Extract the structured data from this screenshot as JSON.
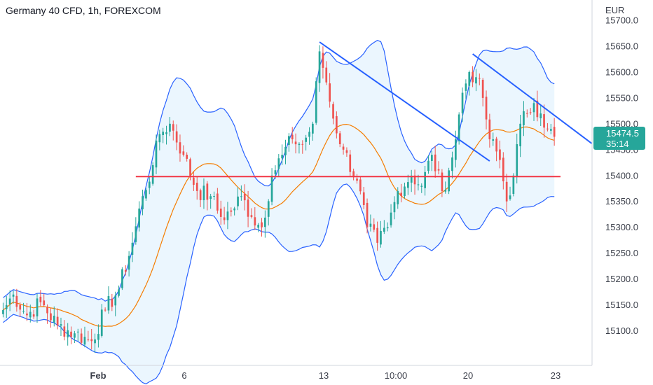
{
  "header": {
    "title": "Germany 40 CFD, 1h, FOREXCOM"
  },
  "price_axis": {
    "currency": "EUR"
  },
  "last_price": {
    "value": "15474.5",
    "countdown": "35:14"
  },
  "colors": {
    "up": "#26a69a",
    "down": "#ef5350",
    "basis": "#f57c00",
    "band": "#2962ff",
    "band_fill": "#2196f3",
    "trendline": "#2962ff",
    "support": "#f23645",
    "badge": "#26a69a"
  },
  "chart_data": {
    "type": "candlestick",
    "title": "Germany 40 CFD, 1h, FOREXCOM",
    "y_axis": {
      "position": "right",
      "ylim": [
        15050,
        15710
      ],
      "ticks": [
        15100,
        15150,
        15200,
        15250,
        15300,
        15350,
        15400,
        15450,
        15500,
        15550,
        15600,
        15650,
        15700
      ],
      "tick_labels": [
        "15100.0",
        "15150.0",
        "15200.0",
        "15250.0",
        "15300.0",
        "15350.0",
        "15400.0",
        "15450.0",
        "15500.0",
        "15550.0",
        "15600.0",
        "15650.0",
        "15700.0"
      ]
    },
    "x_axis": {
      "ticks": [
        "Feb",
        "6",
        "13",
        "10:00",
        "20",
        "23"
      ]
    },
    "grid": false,
    "indicator": "Bollinger Bands",
    "support_level": 15398,
    "trendlines": [
      {
        "from": {
          "bar": 93,
          "price": 15658
        },
        "to": {
          "bar": 143,
          "price": 15428
        }
      },
      {
        "from": {
          "bar": 138,
          "price": 15635
        },
        "to": {
          "bar": 173,
          "price": 15462
        }
      }
    ],
    "last_price": 15474.5,
    "anchors": [
      [
        0,
        15140
      ],
      [
        3,
        15170
      ],
      [
        7,
        15130
      ],
      [
        11,
        15155
      ],
      [
        16,
        15110
      ],
      [
        21,
        15095
      ],
      [
        26,
        15080
      ],
      [
        30,
        15140
      ],
      [
        34,
        15180
      ],
      [
        38,
        15270
      ],
      [
        41,
        15360
      ],
      [
        44,
        15420
      ],
      [
        46,
        15480
      ],
      [
        49,
        15500
      ],
      [
        53,
        15440
      ],
      [
        57,
        15370
      ],
      [
        61,
        15360
      ],
      [
        64,
        15320
      ],
      [
        67,
        15330
      ],
      [
        70,
        15360
      ],
      [
        73,
        15320
      ],
      [
        76,
        15300
      ],
      [
        79,
        15400
      ],
      [
        82,
        15440
      ],
      [
        85,
        15470
      ],
      [
        88,
        15460
      ],
      [
        91,
        15500
      ],
      [
        93,
        15640
      ],
      [
        95,
        15580
      ],
      [
        97,
        15510
      ],
      [
        100,
        15450
      ],
      [
        104,
        15390
      ],
      [
        107,
        15300
      ],
      [
        110,
        15270
      ],
      [
        113,
        15300
      ],
      [
        116,
        15370
      ],
      [
        120,
        15400
      ],
      [
        123,
        15380
      ],
      [
        126,
        15440
      ],
      [
        129,
        15370
      ],
      [
        131,
        15410
      ],
      [
        133,
        15470
      ],
      [
        135,
        15560
      ],
      [
        137,
        15600
      ],
      [
        139,
        15590
      ],
      [
        141,
        15550
      ],
      [
        143,
        15470
      ],
      [
        146,
        15430
      ],
      [
        148,
        15350
      ],
      [
        150,
        15400
      ],
      [
        152,
        15500
      ],
      [
        154,
        15520
      ],
      [
        156,
        15540
      ],
      [
        158,
        15520
      ],
      [
        160,
        15490
      ],
      [
        162,
        15475
      ]
    ]
  }
}
